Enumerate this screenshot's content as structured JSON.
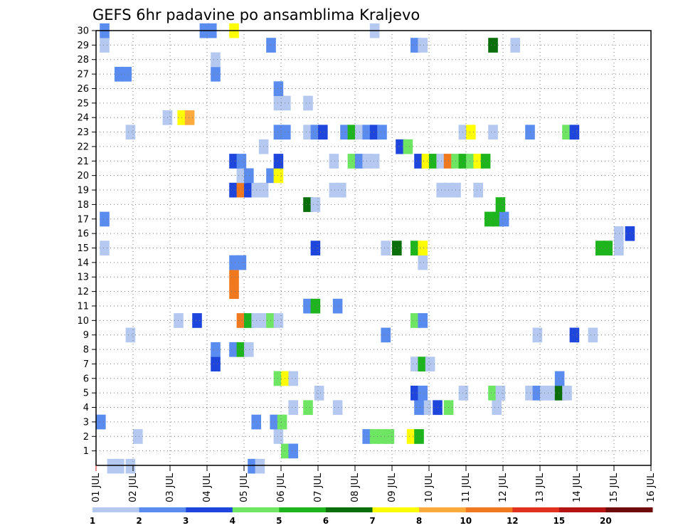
{
  "chart_data": {
    "type": "heatmap",
    "title": "GEFS 6hr padavine po ansamblima Kraljevo",
    "x_ticks": [
      "01 JUL",
      "02 JUL",
      "03 JUL",
      "04 JUL",
      "05 JUL",
      "06 JUL",
      "07 JUL",
      "08 JUL",
      "09 JUL",
      "10 JUL",
      "11 JUL",
      "12 JUL",
      "13 JUL",
      "14 JUL",
      "15 JUL",
      "16 JUL"
    ],
    "y_ticks": [
      "1",
      "2",
      "3",
      "4",
      "5",
      "6",
      "7",
      "8",
      "9",
      "10",
      "11",
      "12",
      "13",
      "14",
      "15",
      "16",
      "17",
      "18",
      "19",
      "20",
      "21",
      "22",
      "23",
      "24",
      "25",
      "26",
      "27",
      "28",
      "29",
      "30"
    ],
    "x_range": [
      "01 JUL",
      "16 JUL"
    ],
    "y_range": [
      0,
      30
    ],
    "time_step_hours": 6,
    "grid": true,
    "colorbar": {
      "labels": [
        "1",
        "2",
        "3",
        "4",
        "5",
        "6",
        "7",
        "8",
        "10",
        "12",
        "15",
        "20"
      ],
      "colors": [
        "#b4c8f0",
        "#5a8cf0",
        "#1e46dc",
        "#6ee664",
        "#1eb41e",
        "#0a6e0a",
        "#ffff00",
        "#ffaa3c",
        "#f0781e",
        "#e0321e",
        "#b41414",
        "#6e0a0a"
      ]
    },
    "cells": [
      [
        0,
        1.3,
        1
      ],
      [
        0,
        1.5,
        1
      ],
      [
        0,
        1.8,
        1
      ],
      [
        0,
        5.1,
        2
      ],
      [
        0,
        5.3,
        1
      ],
      [
        1,
        6.0,
        4
      ],
      [
        1,
        6.2,
        2
      ],
      [
        2,
        2.0,
        1
      ],
      [
        2,
        5.8,
        1
      ],
      [
        2,
        8.2,
        2
      ],
      [
        2,
        8.4,
        4
      ],
      [
        2,
        8.6,
        4
      ],
      [
        2,
        8.8,
        4
      ],
      [
        2,
        9.4,
        7
      ],
      [
        2,
        9.6,
        5
      ],
      [
        3,
        1.0,
        2
      ],
      [
        3,
        5.2,
        2
      ],
      [
        3,
        5.7,
        2
      ],
      [
        3,
        5.9,
        4
      ],
      [
        4,
        6.2,
        1
      ],
      [
        4,
        6.6,
        4
      ],
      [
        4,
        7.4,
        1
      ],
      [
        4,
        9.8,
        1
      ],
      [
        4,
        9.6,
        2
      ],
      [
        4,
        10.1,
        3
      ],
      [
        4,
        10.4,
        4
      ],
      [
        4,
        11.7,
        1
      ],
      [
        5,
        6.9,
        1
      ],
      [
        5,
        9.5,
        3
      ],
      [
        5,
        9.7,
        2
      ],
      [
        5,
        10.8,
        1
      ],
      [
        5,
        11.6,
        4
      ],
      [
        5,
        11.8,
        1
      ],
      [
        5,
        12.6,
        1
      ],
      [
        5,
        12.8,
        2
      ],
      [
        5,
        13.0,
        1
      ],
      [
        5,
        13.2,
        1
      ],
      [
        5,
        13.4,
        6
      ],
      [
        5,
        13.6,
        1
      ],
      [
        6,
        5.8,
        4
      ],
      [
        6,
        6.0,
        7
      ],
      [
        6,
        6.2,
        1
      ],
      [
        6,
        13.4,
        2
      ],
      [
        7,
        4.1,
        3
      ],
      [
        7,
        9.5,
        1
      ],
      [
        7,
        9.7,
        5
      ],
      [
        7,
        9.9,
        1
      ],
      [
        8,
        4.1,
        2
      ],
      [
        8,
        4.6,
        2
      ],
      [
        8,
        4.8,
        5
      ],
      [
        8,
        5.0,
        1
      ],
      [
        9,
        1.8,
        1
      ],
      [
        9,
        8.7,
        2
      ],
      [
        9,
        12.8,
        1
      ],
      [
        9,
        13.8,
        3
      ],
      [
        9,
        14.3,
        1
      ],
      [
        10,
        3.1,
        1
      ],
      [
        10,
        3.6,
        3
      ],
      [
        10,
        4.8,
        9
      ],
      [
        10,
        5.0,
        5
      ],
      [
        10,
        5.2,
        1
      ],
      [
        10,
        5.4,
        1
      ],
      [
        10,
        5.6,
        4
      ],
      [
        10,
        5.8,
        1
      ],
      [
        10,
        9.5,
        4
      ],
      [
        10,
        9.7,
        2
      ],
      [
        11,
        6.6,
        2
      ],
      [
        11,
        6.8,
        5
      ],
      [
        11,
        7.4,
        2
      ],
      [
        12,
        4.6,
        9
      ],
      [
        13,
        4.6,
        9
      ],
      [
        14,
        4.6,
        2
      ],
      [
        14,
        4.8,
        2
      ],
      [
        14,
        9.7,
        1
      ],
      [
        15,
        1.1,
        1
      ],
      [
        15,
        6.8,
        3
      ],
      [
        15,
        8.7,
        1
      ],
      [
        15,
        9.0,
        6
      ],
      [
        15,
        9.5,
        5
      ],
      [
        15,
        9.7,
        7
      ],
      [
        15,
        14.5,
        5
      ],
      [
        15,
        14.7,
        5
      ],
      [
        15,
        15.0,
        1
      ],
      [
        16,
        15.0,
        1
      ],
      [
        16,
        15.3,
        3
      ],
      [
        17,
        1.1,
        2
      ],
      [
        17,
        11.5,
        5
      ],
      [
        17,
        11.7,
        5
      ],
      [
        17,
        11.9,
        2
      ],
      [
        18,
        6.6,
        6
      ],
      [
        18,
        6.8,
        1
      ],
      [
        18,
        11.8,
        5
      ],
      [
        19,
        4.6,
        3
      ],
      [
        19,
        4.8,
        9
      ],
      [
        19,
        5.0,
        3
      ],
      [
        19,
        5.2,
        1
      ],
      [
        19,
        5.4,
        1
      ],
      [
        19,
        7.3,
        1
      ],
      [
        19,
        7.5,
        1
      ],
      [
        19,
        10.2,
        1
      ],
      [
        19,
        10.4,
        1
      ],
      [
        19,
        10.6,
        1
      ],
      [
        19,
        11.2,
        1
      ],
      [
        20,
        4.8,
        1
      ],
      [
        20,
        5.0,
        2
      ],
      [
        20,
        5.6,
        2
      ],
      [
        20,
        5.8,
        7
      ],
      [
        21,
        4.6,
        3
      ],
      [
        21,
        4.8,
        2
      ],
      [
        21,
        5.8,
        3
      ],
      [
        21,
        7.3,
        1
      ],
      [
        21,
        7.8,
        4
      ],
      [
        21,
        8.0,
        2
      ],
      [
        21,
        8.2,
        1
      ],
      [
        21,
        8.4,
        1
      ],
      [
        21,
        9.6,
        3
      ],
      [
        21,
        9.8,
        7
      ],
      [
        21,
        10.0,
        5
      ],
      [
        21,
        10.2,
        1
      ],
      [
        21,
        10.4,
        9
      ],
      [
        21,
        10.6,
        4
      ],
      [
        21,
        10.8,
        5
      ],
      [
        21,
        11.0,
        4
      ],
      [
        21,
        11.2,
        7
      ],
      [
        21,
        11.4,
        5
      ],
      [
        22,
        5.4,
        1
      ],
      [
        22,
        9.1,
        3
      ],
      [
        22,
        9.3,
        4
      ],
      [
        23,
        1.8,
        1
      ],
      [
        23,
        5.8,
        2
      ],
      [
        23,
        6.0,
        2
      ],
      [
        23,
        6.6,
        1
      ],
      [
        23,
        6.8,
        2
      ],
      [
        23,
        7.0,
        3
      ],
      [
        23,
        7.6,
        2
      ],
      [
        23,
        7.8,
        5
      ],
      [
        23,
        8.0,
        1
      ],
      [
        23,
        8.2,
        2
      ],
      [
        23,
        8.4,
        3
      ],
      [
        23,
        8.6,
        2
      ],
      [
        23,
        10.8,
        1
      ],
      [
        23,
        11.0,
        7
      ],
      [
        23,
        11.6,
        1
      ],
      [
        23,
        12.6,
        2
      ],
      [
        23,
        13.6,
        4
      ],
      [
        23,
        13.8,
        3
      ],
      [
        24,
        2.8,
        1
      ],
      [
        24,
        3.2,
        7
      ],
      [
        24,
        3.4,
        8
      ],
      [
        25,
        5.8,
        1
      ],
      [
        25,
        6.0,
        1
      ],
      [
        25,
        6.6,
        1
      ],
      [
        26,
        5.8,
        2
      ],
      [
        27,
        1.5,
        2
      ],
      [
        27,
        1.7,
        2
      ],
      [
        27,
        4.1,
        2
      ],
      [
        28,
        4.1,
        1
      ],
      [
        29,
        1.1,
        1
      ],
      [
        29,
        5.6,
        2
      ],
      [
        29,
        9.5,
        2
      ],
      [
        29,
        9.7,
        1
      ],
      [
        29,
        11.6,
        6
      ],
      [
        29,
        12.2,
        1
      ],
      [
        30,
        1.1,
        2
      ],
      [
        30,
        3.8,
        2
      ],
      [
        30,
        4.0,
        2
      ],
      [
        30,
        4.6,
        7
      ],
      [
        30,
        8.4,
        1
      ]
    ]
  }
}
